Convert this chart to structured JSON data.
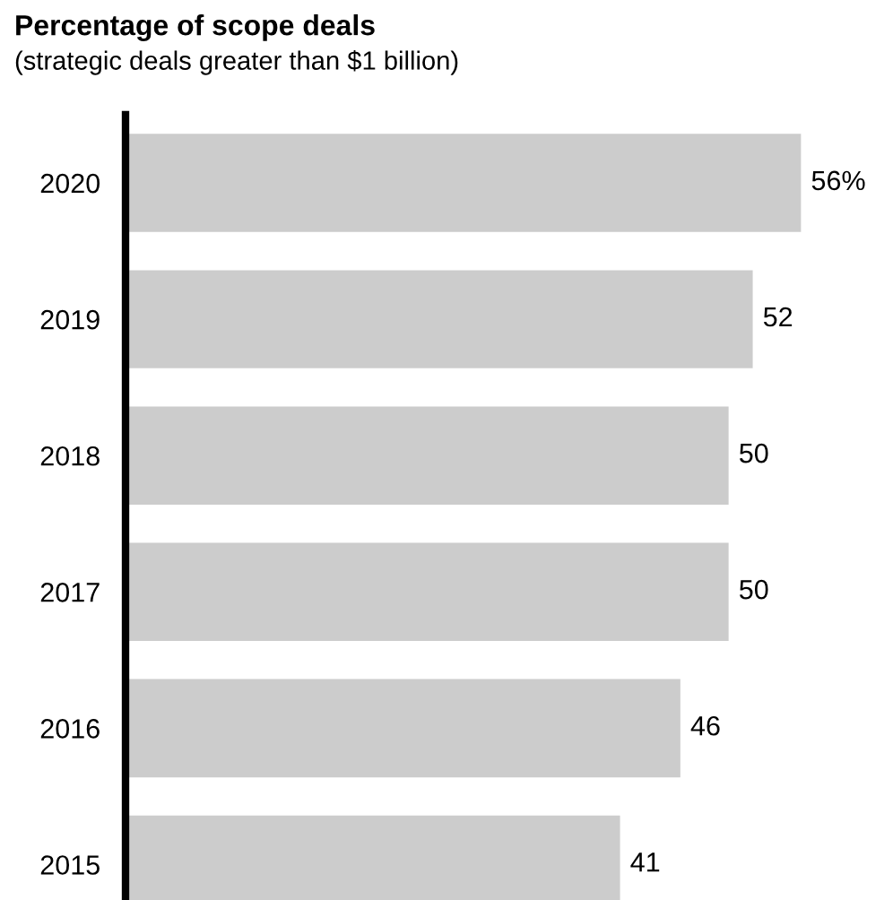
{
  "chart_data": {
    "type": "bar",
    "orientation": "horizontal",
    "title": "Percentage of scope deals",
    "subtitle": "(strategic deals greater than $1 billion)",
    "categories": [
      "2020",
      "2019",
      "2018",
      "2017",
      "2016",
      "2015"
    ],
    "values": [
      56,
      52,
      50,
      50,
      46,
      41
    ],
    "value_labels": [
      "56%",
      "52",
      "50",
      "50",
      "46",
      "41"
    ],
    "color": "#cccccc",
    "grid": false,
    "legend": false
  }
}
